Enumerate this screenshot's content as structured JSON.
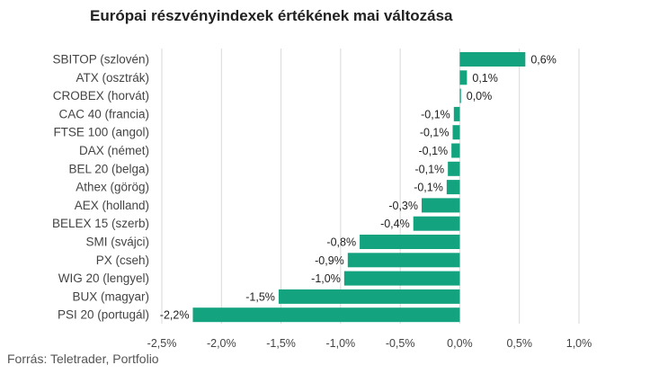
{
  "chart_data": {
    "type": "bar",
    "orientation": "horizontal",
    "title": "Európai részvényindexek értékének mai változása",
    "source": "Forrás: Teletrader, Portfolio",
    "bar_color": "#13a37f",
    "categories": [
      "SBITOP (szlovén)",
      "ATX (osztrák)",
      "CROBEX (horvát)",
      "CAC 40 (francia)",
      "FTSE 100 (angol)",
      "DAX (német)",
      "BEL 20 (belga)",
      "Athex (görög)",
      "AEX (holland)",
      "BELEX 15 (szerb)",
      "SMI (svájci)",
      "PX (cseh)",
      "WIG 20 (lengyel)",
      "BUX (magyar)",
      "PSI 20 (portugál)"
    ],
    "values": [
      0.55,
      0.06,
      0.01,
      -0.05,
      -0.06,
      -0.07,
      -0.1,
      -0.11,
      -0.32,
      -0.39,
      -0.84,
      -0.94,
      -0.97,
      -1.52,
      -2.24
    ],
    "value_labels": [
      "0,6%",
      "0,1%",
      "0,0%",
      "-0,1%",
      "-0,1%",
      "-0,1%",
      "-0,1%",
      "-0,1%",
      "-0,3%",
      "-0,4%",
      "-0,8%",
      "-0,9%",
      "-1,0%",
      "-1,5%",
      "-2,2%"
    ],
    "xlim": [
      -2.5,
      1.0
    ],
    "xticks": [
      -2.5,
      -2.0,
      -1.5,
      -1.0,
      -0.5,
      0.0,
      0.5,
      1.0
    ],
    "xtick_labels": [
      "-2,5%",
      "-2,0%",
      "-1,5%",
      "-1,0%",
      "-0,5%",
      "0,0%",
      "0,5%",
      "1,0%"
    ],
    "grid": true
  }
}
